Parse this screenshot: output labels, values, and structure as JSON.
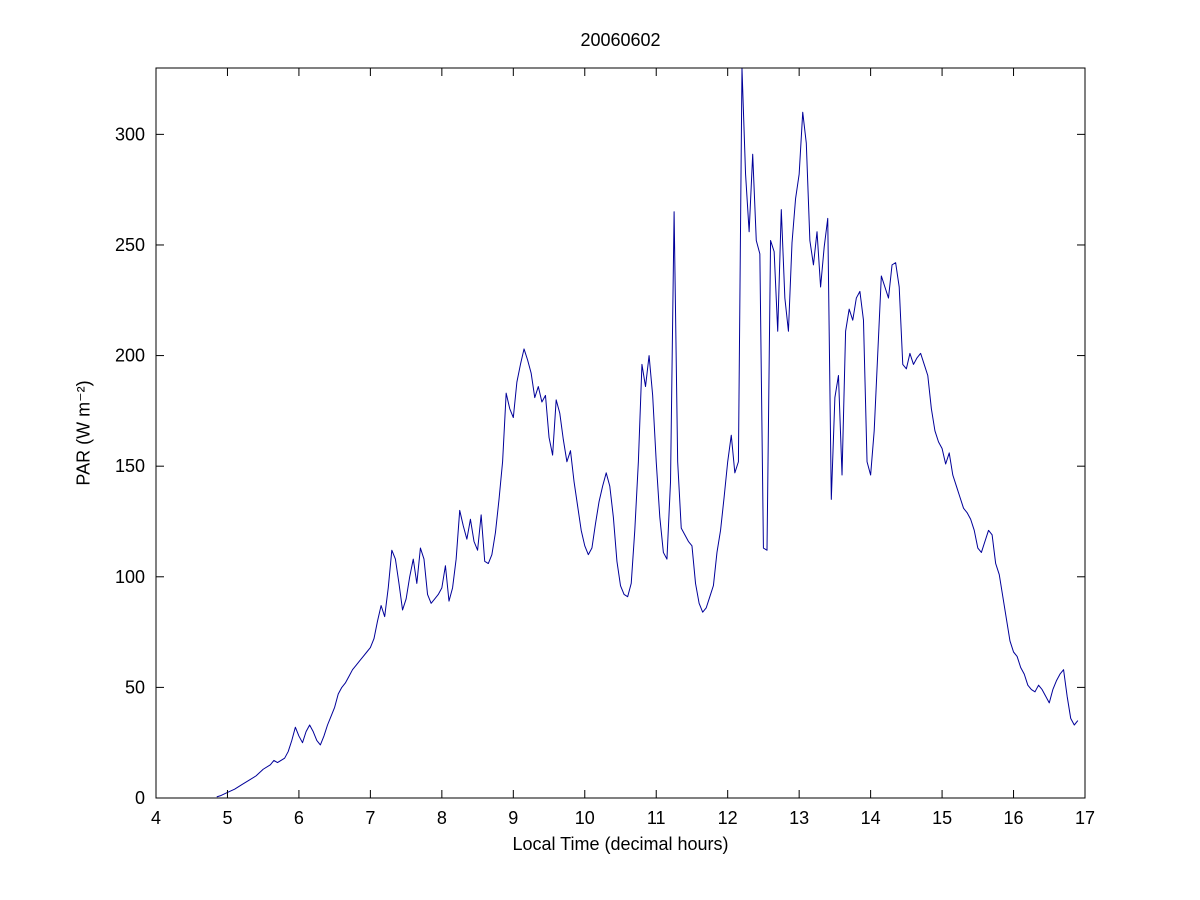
{
  "figure": {
    "background": "#ffffff",
    "axes_color": "#000000"
  },
  "chart_data": {
    "type": "line",
    "title": "20060602",
    "xlabel": "Local Time (decimal hours)",
    "ylabel": "PAR (W m⁻²)",
    "xlim": [
      4,
      17
    ],
    "ylim": [
      0,
      330
    ],
    "xticks": [
      4,
      5,
      6,
      7,
      8,
      9,
      10,
      11,
      12,
      13,
      14,
      15,
      16,
      17
    ],
    "yticks": [
      0,
      50,
      100,
      150,
      200,
      250,
      300
    ],
    "grid": false,
    "legend": null,
    "line_color": "#000099",
    "series": [
      {
        "name": "PAR",
        "points": [
          [
            4.85,
            0.5
          ],
          [
            4.9,
            1
          ],
          [
            5.0,
            2.5
          ],
          [
            5.1,
            4
          ],
          [
            5.2,
            6
          ],
          [
            5.3,
            8
          ],
          [
            5.4,
            10
          ],
          [
            5.5,
            13
          ],
          [
            5.6,
            15
          ],
          [
            5.65,
            17
          ],
          [
            5.7,
            16
          ],
          [
            5.8,
            18
          ],
          [
            5.85,
            21
          ],
          [
            5.9,
            26
          ],
          [
            5.95,
            32
          ],
          [
            6.0,
            28
          ],
          [
            6.05,
            25
          ],
          [
            6.1,
            30
          ],
          [
            6.15,
            33
          ],
          [
            6.2,
            30
          ],
          [
            6.25,
            26
          ],
          [
            6.3,
            24
          ],
          [
            6.35,
            28
          ],
          [
            6.4,
            33
          ],
          [
            6.45,
            37
          ],
          [
            6.5,
            41
          ],
          [
            6.55,
            47
          ],
          [
            6.6,
            50
          ],
          [
            6.65,
            52
          ],
          [
            6.7,
            55
          ],
          [
            6.75,
            58
          ],
          [
            6.8,
            60
          ],
          [
            6.85,
            62
          ],
          [
            6.9,
            64
          ],
          [
            6.95,
            66
          ],
          [
            7.0,
            68
          ],
          [
            7.05,
            72
          ],
          [
            7.1,
            80
          ],
          [
            7.15,
            87
          ],
          [
            7.2,
            82
          ],
          [
            7.25,
            95
          ],
          [
            7.3,
            112
          ],
          [
            7.35,
            108
          ],
          [
            7.4,
            97
          ],
          [
            7.45,
            85
          ],
          [
            7.5,
            90
          ],
          [
            7.55,
            100
          ],
          [
            7.6,
            108
          ],
          [
            7.65,
            97
          ],
          [
            7.7,
            113
          ],
          [
            7.75,
            108
          ],
          [
            7.8,
            92
          ],
          [
            7.85,
            88
          ],
          [
            7.9,
            90
          ],
          [
            7.95,
            92
          ],
          [
            8.0,
            95
          ],
          [
            8.05,
            105
          ],
          [
            8.1,
            89
          ],
          [
            8.15,
            95
          ],
          [
            8.2,
            108
          ],
          [
            8.25,
            130
          ],
          [
            8.3,
            123
          ],
          [
            8.35,
            117
          ],
          [
            8.4,
            126
          ],
          [
            8.45,
            116
          ],
          [
            8.5,
            112
          ],
          [
            8.55,
            128
          ],
          [
            8.6,
            107
          ],
          [
            8.65,
            106
          ],
          [
            8.7,
            110
          ],
          [
            8.75,
            120
          ],
          [
            8.8,
            135
          ],
          [
            8.85,
            152
          ],
          [
            8.9,
            183
          ],
          [
            8.95,
            176
          ],
          [
            9.0,
            172
          ],
          [
            9.05,
            188
          ],
          [
            9.1,
            196
          ],
          [
            9.15,
            203
          ],
          [
            9.2,
            198
          ],
          [
            9.25,
            192
          ],
          [
            9.3,
            181
          ],
          [
            9.35,
            186
          ],
          [
            9.4,
            179
          ],
          [
            9.45,
            182
          ],
          [
            9.5,
            163
          ],
          [
            9.55,
            155
          ],
          [
            9.6,
            180
          ],
          [
            9.65,
            174
          ],
          [
            9.7,
            162
          ],
          [
            9.75,
            152
          ],
          [
            9.8,
            157
          ],
          [
            9.85,
            143
          ],
          [
            9.9,
            132
          ],
          [
            9.95,
            121
          ],
          [
            10.0,
            114
          ],
          [
            10.05,
            110
          ],
          [
            10.1,
            113
          ],
          [
            10.15,
            124
          ],
          [
            10.2,
            134
          ],
          [
            10.25,
            141
          ],
          [
            10.3,
            147
          ],
          [
            10.35,
            141
          ],
          [
            10.4,
            127
          ],
          [
            10.45,
            107
          ],
          [
            10.5,
            96
          ],
          [
            10.55,
            92
          ],
          [
            10.6,
            91
          ],
          [
            10.65,
            97
          ],
          [
            10.7,
            121
          ],
          [
            10.75,
            152
          ],
          [
            10.8,
            196
          ],
          [
            10.85,
            186
          ],
          [
            10.9,
            200
          ],
          [
            10.95,
            182
          ],
          [
            11.0,
            152
          ],
          [
            11.05,
            127
          ],
          [
            11.1,
            111
          ],
          [
            11.15,
            108
          ],
          [
            11.2,
            143
          ],
          [
            11.25,
            265
          ],
          [
            11.3,
            152
          ],
          [
            11.35,
            122
          ],
          [
            11.4,
            119
          ],
          [
            11.45,
            116
          ],
          [
            11.5,
            114
          ],
          [
            11.55,
            97
          ],
          [
            11.6,
            88
          ],
          [
            11.65,
            84
          ],
          [
            11.7,
            86
          ],
          [
            11.75,
            91
          ],
          [
            11.8,
            96
          ],
          [
            11.85,
            111
          ],
          [
            11.9,
            121
          ],
          [
            11.95,
            136
          ],
          [
            12.0,
            152
          ],
          [
            12.05,
            164
          ],
          [
            12.1,
            147
          ],
          [
            12.15,
            152
          ],
          [
            12.2,
            330
          ],
          [
            12.25,
            282
          ],
          [
            12.3,
            256
          ],
          [
            12.35,
            291
          ],
          [
            12.4,
            252
          ],
          [
            12.45,
            246
          ],
          [
            12.5,
            113
          ],
          [
            12.55,
            112
          ],
          [
            12.6,
            252
          ],
          [
            12.65,
            247
          ],
          [
            12.7,
            211
          ],
          [
            12.75,
            266
          ],
          [
            12.8,
            226
          ],
          [
            12.85,
            211
          ],
          [
            12.9,
            251
          ],
          [
            12.95,
            271
          ],
          [
            13.0,
            282
          ],
          [
            13.05,
            310
          ],
          [
            13.1,
            296
          ],
          [
            13.15,
            252
          ],
          [
            13.2,
            241
          ],
          [
            13.25,
            256
          ],
          [
            13.3,
            231
          ],
          [
            13.35,
            249
          ],
          [
            13.4,
            262
          ],
          [
            13.45,
            135
          ],
          [
            13.5,
            181
          ],
          [
            13.55,
            191
          ],
          [
            13.6,
            146
          ],
          [
            13.65,
            211
          ],
          [
            13.7,
            221
          ],
          [
            13.75,
            216
          ],
          [
            13.8,
            226
          ],
          [
            13.85,
            229
          ],
          [
            13.9,
            216
          ],
          [
            13.95,
            152
          ],
          [
            14.0,
            146
          ],
          [
            14.05,
            166
          ],
          [
            14.1,
            201
          ],
          [
            14.15,
            236
          ],
          [
            14.2,
            231
          ],
          [
            14.25,
            226
          ],
          [
            14.3,
            241
          ],
          [
            14.35,
            242
          ],
          [
            14.4,
            231
          ],
          [
            14.45,
            196
          ],
          [
            14.5,
            194
          ],
          [
            14.55,
            201
          ],
          [
            14.6,
            196
          ],
          [
            14.65,
            199
          ],
          [
            14.7,
            201
          ],
          [
            14.75,
            196
          ],
          [
            14.8,
            191
          ],
          [
            14.85,
            176
          ],
          [
            14.9,
            166
          ],
          [
            14.95,
            161
          ],
          [
            15.0,
            158
          ],
          [
            15.05,
            151
          ],
          [
            15.1,
            156
          ],
          [
            15.15,
            146
          ],
          [
            15.2,
            141
          ],
          [
            15.25,
            136
          ],
          [
            15.3,
            131
          ],
          [
            15.35,
            129
          ],
          [
            15.4,
            126
          ],
          [
            15.45,
            121
          ],
          [
            15.5,
            113
          ],
          [
            15.55,
            111
          ],
          [
            15.6,
            116
          ],
          [
            15.65,
            121
          ],
          [
            15.7,
            119
          ],
          [
            15.75,
            106
          ],
          [
            15.8,
            101
          ],
          [
            15.85,
            91
          ],
          [
            15.9,
            81
          ],
          [
            15.95,
            71
          ],
          [
            16.0,
            66
          ],
          [
            16.05,
            64
          ],
          [
            16.1,
            59
          ],
          [
            16.15,
            56
          ],
          [
            16.2,
            51
          ],
          [
            16.25,
            49
          ],
          [
            16.3,
            48
          ],
          [
            16.35,
            51
          ],
          [
            16.4,
            49
          ],
          [
            16.45,
            46
          ],
          [
            16.5,
            43
          ],
          [
            16.55,
            49
          ],
          [
            16.6,
            53
          ],
          [
            16.65,
            56
          ],
          [
            16.7,
            58
          ],
          [
            16.75,
            46
          ],
          [
            16.8,
            36
          ],
          [
            16.85,
            33
          ],
          [
            16.9,
            35
          ]
        ]
      }
    ]
  }
}
